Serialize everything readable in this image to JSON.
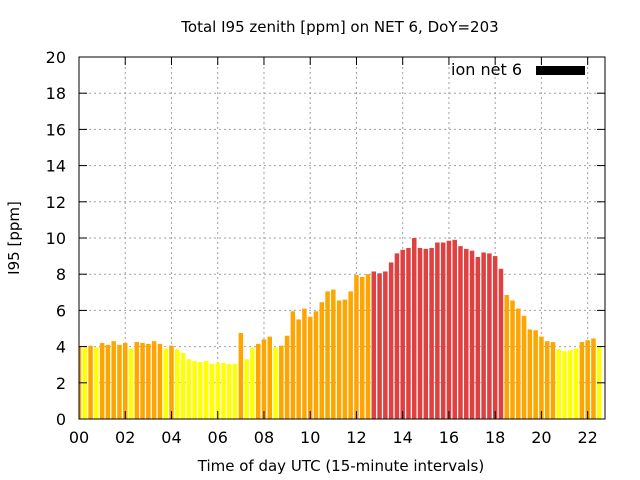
{
  "chart_data": {
    "type": "bar",
    "title": "Total I95 zenith [ppm] on NET 6, DoY=203",
    "xlabel": "Time of day UTC (15-minute intervals)",
    "ylabel": "I95 [ppm]",
    "ylim": [
      0,
      20
    ],
    "y_ticks": [
      "0",
      "2",
      "4",
      "6",
      "8",
      "10",
      "12",
      "14",
      "16",
      "18",
      "20"
    ],
    "xlim": [
      0,
      22.75
    ],
    "x_ticks": [
      "00",
      "02",
      "04",
      "06",
      "08",
      "10",
      "12",
      "14",
      "16",
      "18",
      "20",
      "22"
    ],
    "x_interval_hours": 0.25,
    "grid": true,
    "legend": {
      "label": "ion net 6",
      "position": "top-right",
      "color": "#000000"
    },
    "colors": {
      "yellow": "#ffff00",
      "orange": "#ffa500",
      "red": "#e04040"
    },
    "color_rule": "yellow below 4 ppm, orange 4-8 ppm, red above 8 ppm",
    "values": [
      4.0,
      3.95,
      4.05,
      3.95,
      4.2,
      4.1,
      4.3,
      4.1,
      4.2,
      3.9,
      4.25,
      4.2,
      4.15,
      4.3,
      4.15,
      3.9,
      4.05,
      3.85,
      3.65,
      3.3,
      3.2,
      3.15,
      3.2,
      3.05,
      3.1,
      3.1,
      3.05,
      3.05,
      4.75,
      3.3,
      3.95,
      4.15,
      4.4,
      4.55,
      3.95,
      4.05,
      4.6,
      5.95,
      5.5,
      6.1,
      5.65,
      5.95,
      6.45,
      7.05,
      7.15,
      6.55,
      6.6,
      7.05,
      7.95,
      7.85,
      8.0,
      8.15,
      8.05,
      8.15,
      8.65,
      9.15,
      9.35,
      9.45,
      10.0,
      9.45,
      9.4,
      9.45,
      9.75,
      9.75,
      9.85,
      9.9,
      9.55,
      9.4,
      9.3,
      8.95,
      9.2,
      9.15,
      9.0,
      8.3,
      6.85,
      6.55,
      6.1,
      5.7,
      4.95,
      4.9,
      4.55,
      4.3,
      4.25,
      3.85,
      3.75,
      3.8,
      3.9,
      4.25,
      4.35,
      4.45,
      3.95
    ]
  }
}
